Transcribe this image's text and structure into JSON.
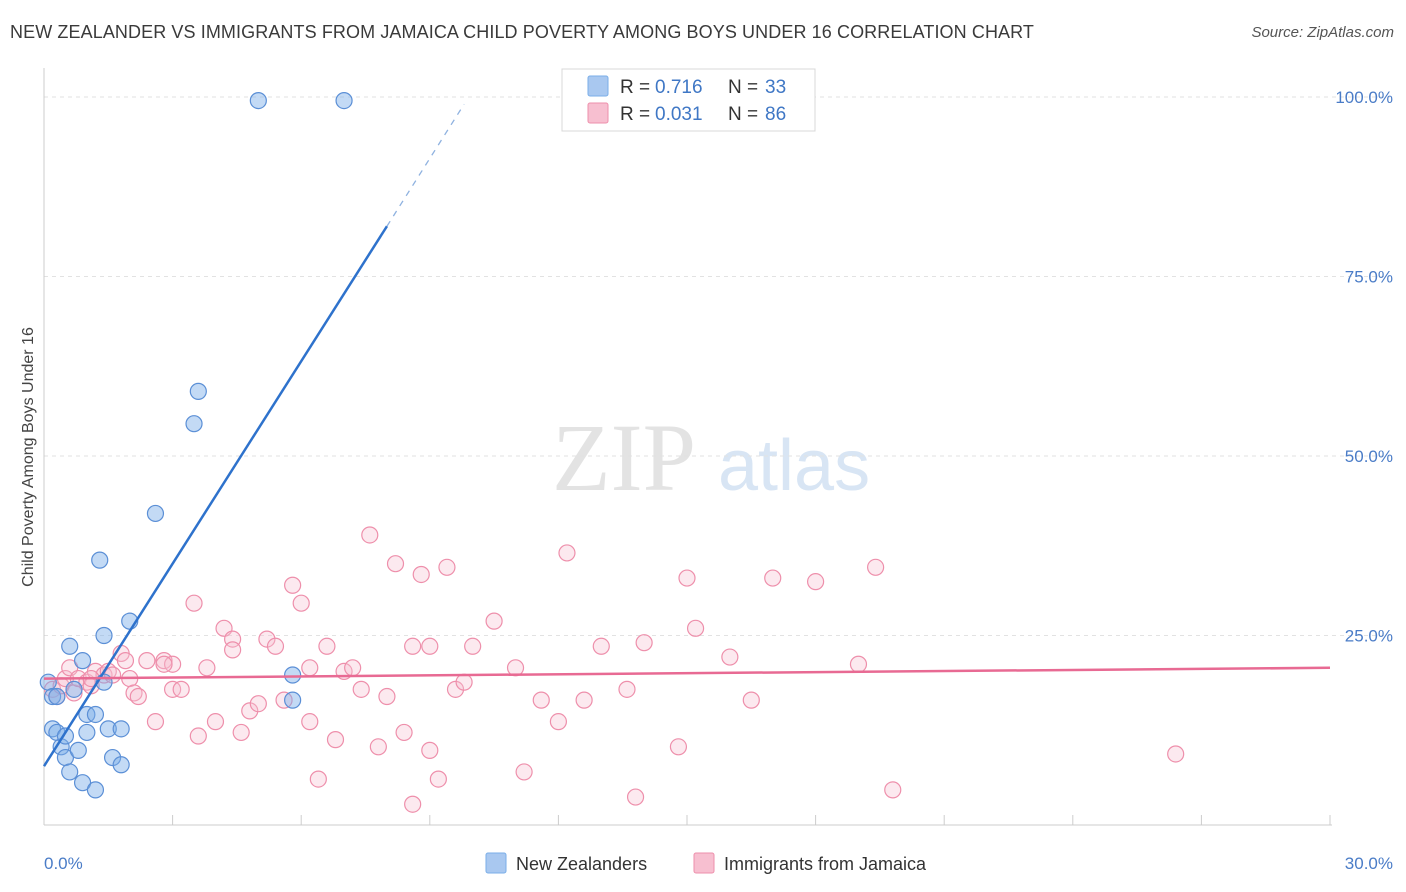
{
  "header": {
    "title": "NEW ZEALANDER VS IMMIGRANTS FROM JAMAICA CHILD POVERTY AMONG BOYS UNDER 16 CORRELATION CHART",
    "source": "Source: ZipAtlas.com"
  },
  "watermark": {
    "zip": "ZIP",
    "atlas": "atlas"
  },
  "legend": {
    "r_label": "R =",
    "n_label": "N =",
    "rows": [
      {
        "r": "0.716",
        "n": "33",
        "color": "#a9c8f0"
      },
      {
        "r": "0.031",
        "n": "86",
        "color": "#f7bfd0"
      }
    ]
  },
  "chart_data": {
    "type": "scatter",
    "title": "NEW ZEALANDER VS IMMIGRANTS FROM JAMAICA CHILD POVERTY AMONG BOYS UNDER 16 CORRELATION CHART",
    "xlabel": "",
    "ylabel": "Child Poverty Among Boys Under 16",
    "xlim": [
      0,
      30
    ],
    "ylim": [
      0,
      100
    ],
    "x_tick_labels": [
      "0.0%",
      "30.0%"
    ],
    "y_tick_labels": [
      "100.0%",
      "75.0%",
      "50.0%",
      "25.0%"
    ],
    "y_ticks": [
      100,
      75,
      50,
      25
    ],
    "grid": true,
    "series": [
      {
        "name": "New Zealanders",
        "color": "#7aaee8",
        "stroke": "#5b8fd6",
        "line_color": "#2e72cc",
        "trend": {
          "x0": 0.0,
          "y0": 6.8,
          "x1": 8.0,
          "y1": 82.0,
          "dash_x1": 9.8,
          "dash_y1": 99.0
        },
        "points": [
          [
            0.1,
            18.5
          ],
          [
            0.2,
            16.5
          ],
          [
            0.2,
            12.0
          ],
          [
            0.3,
            11.5
          ],
          [
            0.4,
            9.5
          ],
          [
            0.5,
            11.0
          ],
          [
            0.5,
            8.0
          ],
          [
            0.6,
            6.0
          ],
          [
            0.7,
            17.5
          ],
          [
            0.8,
            9.0
          ],
          [
            0.9,
            4.5
          ],
          [
            1.0,
            11.5
          ],
          [
            1.0,
            14.0
          ],
          [
            1.2,
            14.0
          ],
          [
            1.2,
            3.5
          ],
          [
            1.3,
            35.5
          ],
          [
            1.4,
            25.0
          ],
          [
            1.4,
            18.5
          ],
          [
            1.5,
            12.0
          ],
          [
            1.6,
            8.0
          ],
          [
            1.8,
            7.0
          ],
          [
            1.8,
            12.0
          ],
          [
            2.0,
            27.0
          ],
          [
            2.6,
            42.0
          ],
          [
            3.5,
            54.5
          ],
          [
            3.6,
            59.0
          ],
          [
            5.0,
            99.5
          ],
          [
            7.0,
            99.5
          ],
          [
            5.8,
            19.5
          ],
          [
            5.8,
            16.0
          ],
          [
            0.6,
            23.5
          ],
          [
            0.3,
            16.5
          ],
          [
            0.9,
            21.5
          ]
        ]
      },
      {
        "name": "Immigrants from Jamaica",
        "color": "#f7bfd0",
        "stroke": "#ee8fab",
        "line_color": "#e86a93",
        "trend": {
          "x0": 0.0,
          "y0": 19.0,
          "x1": 30.0,
          "y1": 20.5
        },
        "points": [
          [
            0.2,
            17.5
          ],
          [
            0.3,
            16.5
          ],
          [
            0.4,
            18.0
          ],
          [
            0.5,
            19.0
          ],
          [
            0.6,
            20.5
          ],
          [
            0.7,
            17.0
          ],
          [
            0.8,
            19.0
          ],
          [
            1.0,
            18.5
          ],
          [
            1.1,
            18.0
          ],
          [
            1.2,
            20.0
          ],
          [
            1.4,
            19.5
          ],
          [
            1.5,
            20.0
          ],
          [
            1.6,
            19.5
          ],
          [
            1.8,
            22.5
          ],
          [
            1.9,
            21.5
          ],
          [
            2.0,
            19.0
          ],
          [
            2.1,
            17.0
          ],
          [
            2.2,
            16.5
          ],
          [
            2.4,
            21.5
          ],
          [
            2.6,
            13.0
          ],
          [
            2.8,
            21.5
          ],
          [
            3.0,
            17.5
          ],
          [
            3.0,
            21.0
          ],
          [
            3.2,
            17.5
          ],
          [
            3.5,
            29.5
          ],
          [
            3.6,
            11.0
          ],
          [
            3.8,
            20.5
          ],
          [
            4.0,
            13.0
          ],
          [
            4.2,
            26.0
          ],
          [
            4.4,
            24.5
          ],
          [
            4.6,
            11.5
          ],
          [
            4.8,
            14.5
          ],
          [
            5.0,
            15.5
          ],
          [
            5.2,
            24.5
          ],
          [
            5.4,
            23.5
          ],
          [
            5.6,
            16.0
          ],
          [
            5.8,
            32.0
          ],
          [
            6.0,
            29.5
          ],
          [
            6.2,
            13.0
          ],
          [
            6.4,
            5.0
          ],
          [
            6.6,
            23.5
          ],
          [
            6.8,
            10.5
          ],
          [
            7.0,
            20.0
          ],
          [
            7.2,
            20.5
          ],
          [
            7.4,
            17.5
          ],
          [
            7.6,
            39.0
          ],
          [
            7.8,
            9.5
          ],
          [
            8.0,
            16.5
          ],
          [
            8.2,
            35.0
          ],
          [
            8.4,
            11.5
          ],
          [
            8.6,
            23.5
          ],
          [
            8.8,
            33.5
          ],
          [
            9.0,
            9.0
          ],
          [
            9.2,
            5.0
          ],
          [
            9.4,
            34.5
          ],
          [
            9.6,
            17.5
          ],
          [
            9.8,
            18.5
          ],
          [
            10.0,
            23.5
          ],
          [
            10.5,
            27.0
          ],
          [
            11.0,
            20.5
          ],
          [
            11.2,
            6.0
          ],
          [
            11.6,
            16.0
          ],
          [
            12.0,
            13.0
          ],
          [
            12.2,
            36.5
          ],
          [
            12.6,
            16.0
          ],
          [
            13.0,
            23.5
          ],
          [
            13.6,
            17.5
          ],
          [
            13.8,
            2.5
          ],
          [
            14.0,
            24.0
          ],
          [
            14.8,
            9.5
          ],
          [
            15.0,
            33.0
          ],
          [
            15.2,
            26.0
          ],
          [
            16.0,
            22.0
          ],
          [
            16.5,
            16.0
          ],
          [
            17.0,
            33.0
          ],
          [
            18.0,
            32.5
          ],
          [
            19.0,
            21.0
          ],
          [
            19.4,
            34.5
          ],
          [
            19.8,
            3.5
          ],
          [
            26.4,
            8.5
          ],
          [
            6.2,
            20.5
          ],
          [
            4.4,
            23.0
          ],
          [
            2.8,
            21.0
          ],
          [
            1.1,
            19.0
          ],
          [
            9.0,
            23.5
          ],
          [
            8.6,
            1.5
          ]
        ]
      }
    ]
  },
  "bottom_legend": {
    "items": [
      {
        "label": "New Zealanders",
        "color": "#a9c8f0"
      },
      {
        "label": "Immigrants from Jamaica",
        "color": "#f7bfd0"
      }
    ]
  }
}
